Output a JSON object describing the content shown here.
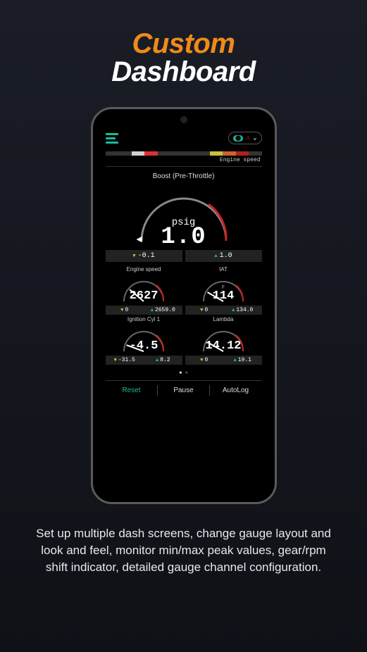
{
  "title": {
    "line1": "Custom",
    "line2": "Dashboard",
    "color1": "#f08a1a",
    "color2": "#ffffff"
  },
  "description": "Set up multiple dash screens, change gauge layout and look and feel, monitor min/max peak values, gear/rpm shift indicator, detailed gauge channel configuration.",
  "shift_indicator": {
    "label": "Engine speed",
    "segments": [
      {
        "color": "#333333"
      },
      {
        "color": "#333333"
      },
      {
        "color": "#d0d0d0"
      },
      {
        "color": "#e03030"
      },
      {
        "color": "#333333"
      },
      {
        "color": "#333333"
      },
      {
        "color": "#333333"
      },
      {
        "color": "#333333"
      },
      {
        "color": "#c8c040"
      },
      {
        "color": "#d06030"
      },
      {
        "color": "#b02020"
      },
      {
        "color": "#333333"
      }
    ]
  },
  "main_gauge": {
    "label": "Boost (Pre-Throttle)",
    "unit": "psig",
    "value": "1.0",
    "min": "-0.1",
    "max": "1.0",
    "arc_stroke": "#888888",
    "arc_red": "#c82020"
  },
  "small_gauges": [
    {
      "label": "Engine speed",
      "unit": "",
      "value": "2627",
      "min": "0",
      "max": "2659.0",
      "needle_angle": -140
    },
    {
      "label": "IAT",
      "unit": "F",
      "value": "114",
      "min": "0",
      "max": "134.0",
      "needle_angle": -150
    },
    {
      "label": "Ignition Cyl 1",
      "unit": "",
      "value": "-4.5",
      "min": "-31.5",
      "max": "8.2",
      "needle_angle": -160
    },
    {
      "label": "Lambda",
      "unit": "",
      "value": "14.12",
      "min": "0",
      "max": "19.1",
      "needle_angle": -150
    }
  ],
  "bottom_buttons": {
    "reset": "Reset",
    "pause": "Pause",
    "autolog": "AutoLog"
  },
  "status_pill": {
    "badge": "⬤"
  },
  "colors": {
    "teal": "#1cb89c",
    "yellow": "#e0c040",
    "arc_red": "#c82020"
  }
}
